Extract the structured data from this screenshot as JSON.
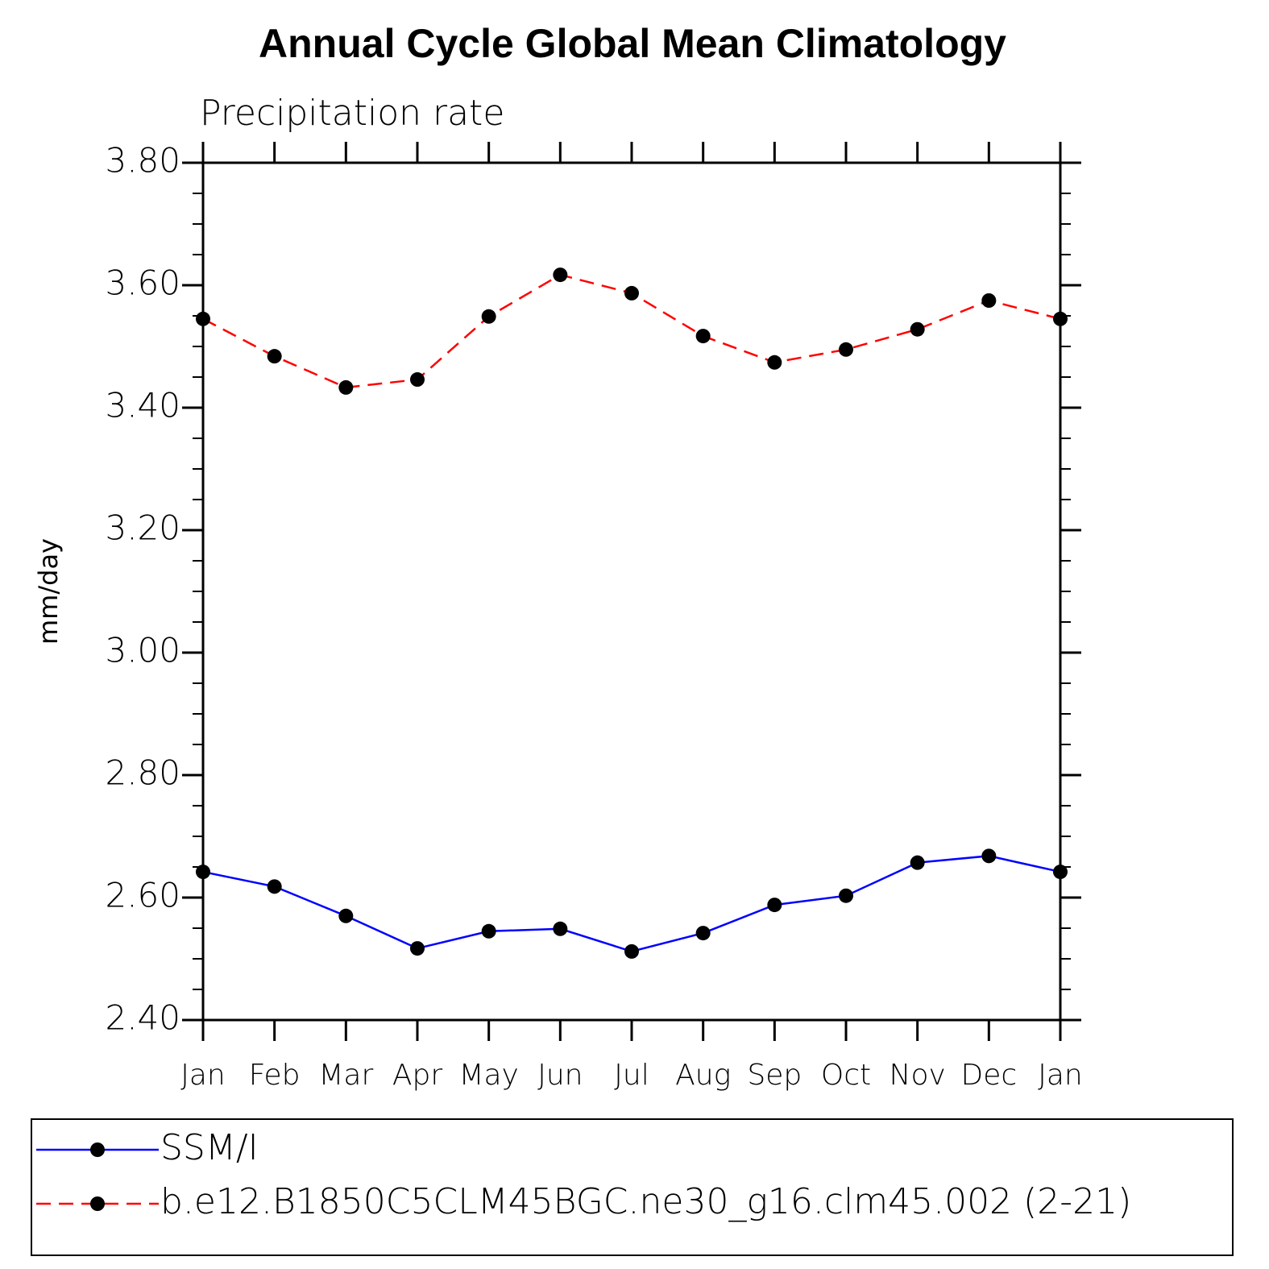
{
  "chart_data": {
    "type": "line",
    "title": "Annual Cycle Global Mean Climatology",
    "subtitle": "Precipitation rate",
    "y_label": "mm/day",
    "categories": [
      "Jan",
      "Feb",
      "Mar",
      "Apr",
      "May",
      "Jun",
      "Jul",
      "Aug",
      "Sep",
      "Oct",
      "Nov",
      "Dec",
      "Jan"
    ],
    "series": [
      {
        "name": "SSM/I",
        "color": "#0000ff",
        "line_style": "solid",
        "marker_color": "#000000",
        "values": [
          2.642,
          2.618,
          2.57,
          2.517,
          2.545,
          2.549,
          2.512,
          2.542,
          2.588,
          2.603,
          2.657,
          2.668,
          2.642
        ]
      },
      {
        "name": "b.e12.B1850C5CLM45BGC.ne30_g16.clm45.002 (2-21)",
        "color": "#ff0000",
        "line_style": "dashed",
        "marker_color": "#000000",
        "values": [
          3.545,
          3.484,
          3.433,
          3.446,
          3.549,
          3.617,
          3.587,
          3.517,
          3.474,
          3.495,
          3.528,
          3.575,
          3.545
        ]
      }
    ],
    "ylim": [
      2.4,
      3.8
    ],
    "yticks": [
      {
        "value": 2.4,
        "label": "2.40"
      },
      {
        "value": 2.6,
        "label": "2.60"
      },
      {
        "value": 2.8,
        "label": "2.80"
      },
      {
        "value": 3.0,
        "label": "3.00"
      },
      {
        "value": 3.2,
        "label": "3.20"
      },
      {
        "value": 3.4,
        "label": "3.40"
      },
      {
        "value": 3.6,
        "label": "3.60"
      },
      {
        "value": 3.8,
        "label": "3.80"
      }
    ],
    "yminor_per_major": 4,
    "grid": false,
    "legend": "bottom"
  }
}
